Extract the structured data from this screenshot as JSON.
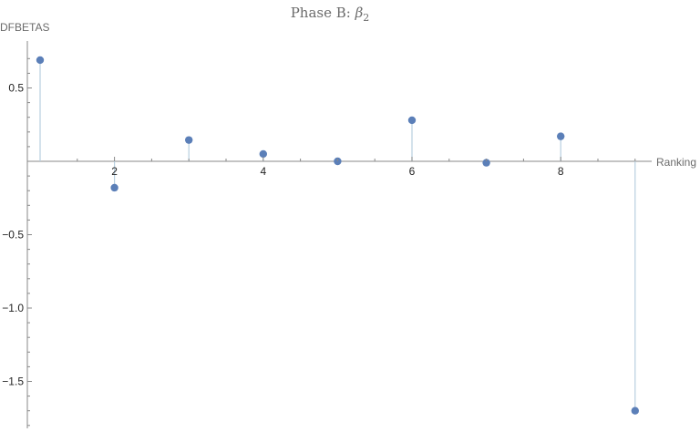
{
  "chart_data": {
    "type": "scatter",
    "style": "stem",
    "title_prefix": "Phase B: ",
    "title_symbol": "β",
    "title_subscript": "2",
    "xlabel": "Ranking",
    "ylabel": "DFBETAS",
    "xlim": [
      1,
      9
    ],
    "ylim": [
      -1.8,
      0.8
    ],
    "x_ticks": [
      2,
      4,
      6,
      8
    ],
    "y_ticks": [
      -1.5,
      -1.0,
      -0.5,
      0.5
    ],
    "y_tick_labels": [
      "−1.5",
      "−1.0",
      "−0.5",
      "0.5"
    ],
    "x": [
      1,
      2,
      3,
      4,
      5,
      6,
      7,
      8,
      9
    ],
    "y": [
      0.69,
      -0.18,
      0.145,
      0.05,
      0.0,
      0.28,
      -0.01,
      0.17,
      -1.7
    ],
    "point_color": "#5b7fb8",
    "stem_color": "#b8cfe0",
    "grid": false,
    "legend": "none"
  }
}
